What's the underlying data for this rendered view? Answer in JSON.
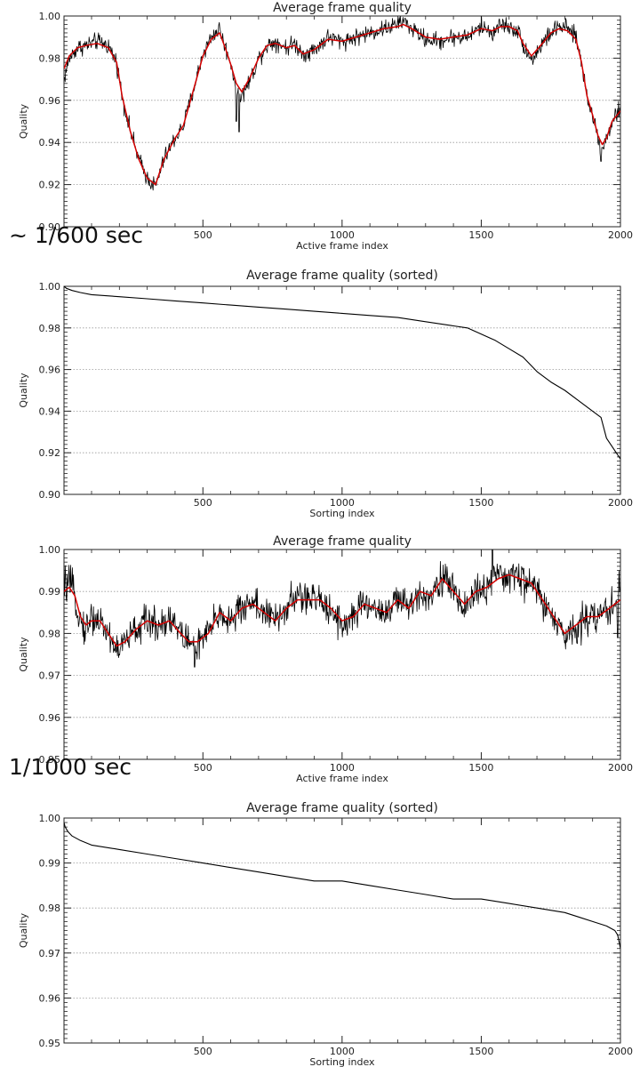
{
  "notes": [
    {
      "id": "note-1",
      "text": "~ 1/600 sec"
    },
    {
      "id": "note-2",
      "text": "1/1000 sec"
    }
  ],
  "colors": {
    "axis": "#222222",
    "grid": "#9a9a9a",
    "raw_line": "#000000",
    "smooth_line": "#d40000"
  },
  "chart_data": [
    {
      "id": "chart-1",
      "type": "line",
      "title": "Average frame quality",
      "xlabel": "Active frame index",
      "ylabel": "Quality",
      "xlim": [
        1,
        2000
      ],
      "ylim": [
        0.9,
        1.0
      ],
      "xticks": [
        500,
        1000,
        1500,
        2000
      ],
      "yticks": [
        0.9,
        0.92,
        0.94,
        0.96,
        0.98,
        1.0
      ],
      "ytick_labels": [
        "0.90",
        "0.92",
        "0.94",
        "0.96",
        "0.98",
        "1.00"
      ],
      "grid": "horizontal dotted",
      "noise": 0.0035,
      "spikes": [
        [
          630,
          0.945
        ],
        [
          620,
          0.95
        ],
        [
          1930,
          0.931
        ]
      ],
      "series": [
        {
          "role": "raw",
          "color": "#000000",
          "x": [
            1,
            20,
            50,
            80,
            120,
            160,
            190,
            210,
            240,
            270,
            300,
            330,
            360,
            400,
            430,
            460,
            500,
            530,
            560,
            580,
            600,
            620,
            640,
            670,
            700,
            730,
            760,
            800,
            830,
            860,
            900,
            950,
            1000,
            1050,
            1100,
            1150,
            1200,
            1220,
            1250,
            1300,
            1350,
            1400,
            1450,
            1500,
            1540,
            1570,
            1600,
            1630,
            1650,
            1680,
            1720,
            1750,
            1780,
            1810,
            1840,
            1860,
            1880,
            1900,
            1920,
            1935,
            1950,
            1970,
            2000
          ],
          "y": [
            0.97,
            0.98,
            0.985,
            0.986,
            0.988,
            0.986,
            0.978,
            0.962,
            0.945,
            0.932,
            0.923,
            0.919,
            0.932,
            0.942,
            0.948,
            0.962,
            0.982,
            0.99,
            0.994,
            0.985,
            0.978,
            0.966,
            0.962,
            0.97,
            0.98,
            0.986,
            0.988,
            0.985,
            0.987,
            0.982,
            0.984,
            0.99,
            0.988,
            0.99,
            0.992,
            0.994,
            0.996,
            0.998,
            0.994,
            0.989,
            0.988,
            0.99,
            0.99,
            0.995,
            0.992,
            0.996,
            0.995,
            0.993,
            0.987,
            0.979,
            0.987,
            0.992,
            0.995,
            0.994,
            0.99,
            0.978,
            0.962,
            0.953,
            0.942,
            0.937,
            0.942,
            0.95,
            0.956
          ]
        },
        {
          "role": "smoothed",
          "color": "#d40000",
          "x": [
            1,
            20,
            50,
            80,
            120,
            160,
            190,
            210,
            240,
            270,
            300,
            330,
            360,
            400,
            430,
            460,
            500,
            530,
            560,
            580,
            600,
            620,
            640,
            670,
            700,
            730,
            760,
            800,
            830,
            860,
            900,
            950,
            1000,
            1050,
            1100,
            1150,
            1200,
            1220,
            1250,
            1300,
            1350,
            1400,
            1450,
            1500,
            1540,
            1570,
            1600,
            1630,
            1650,
            1680,
            1720,
            1750,
            1780,
            1810,
            1840,
            1860,
            1880,
            1900,
            1920,
            1935,
            1950,
            1970,
            2000
          ],
          "y": [
            0.975,
            0.981,
            0.985,
            0.986,
            0.987,
            0.985,
            0.978,
            0.962,
            0.945,
            0.932,
            0.923,
            0.92,
            0.932,
            0.942,
            0.948,
            0.962,
            0.981,
            0.989,
            0.992,
            0.985,
            0.977,
            0.968,
            0.964,
            0.971,
            0.98,
            0.986,
            0.987,
            0.985,
            0.986,
            0.982,
            0.984,
            0.989,
            0.988,
            0.99,
            0.992,
            0.994,
            0.995,
            0.996,
            0.994,
            0.99,
            0.989,
            0.99,
            0.991,
            0.994,
            0.993,
            0.995,
            0.995,
            0.993,
            0.987,
            0.981,
            0.987,
            0.992,
            0.994,
            0.993,
            0.989,
            0.978,
            0.962,
            0.953,
            0.943,
            0.939,
            0.942,
            0.95,
            0.955
          ]
        }
      ]
    },
    {
      "id": "chart-2",
      "type": "line",
      "title": "Average frame quality (sorted)",
      "xlabel": "Sorting index",
      "ylabel": "Quality",
      "xlim": [
        1,
        2000
      ],
      "ylim": [
        0.9,
        1.0
      ],
      "xticks": [
        500,
        1000,
        1500,
        2000
      ],
      "yticks": [
        0.9,
        0.92,
        0.94,
        0.96,
        0.98,
        1.0
      ],
      "ytick_labels": [
        "0.90",
        "0.92",
        "0.94",
        "0.96",
        "0.98",
        "1.00"
      ],
      "grid": "horizontal dotted",
      "noise": 0,
      "spikes": [],
      "series": [
        {
          "role": "sorted",
          "color": "#000000",
          "x": [
            1,
            10,
            30,
            60,
            100,
            200,
            300,
            400,
            500,
            600,
            700,
            800,
            900,
            1000,
            1100,
            1200,
            1300,
            1400,
            1450,
            1500,
            1550,
            1600,
            1650,
            1700,
            1720,
            1750,
            1800,
            1850,
            1900,
            1930,
            1950,
            1970,
            2000
          ],
          "y": [
            1.0,
            0.999,
            0.998,
            0.997,
            0.996,
            0.995,
            0.994,
            0.993,
            0.992,
            0.991,
            0.99,
            0.989,
            0.988,
            0.987,
            0.986,
            0.985,
            0.983,
            0.981,
            0.98,
            0.977,
            0.974,
            0.97,
            0.966,
            0.959,
            0.957,
            0.954,
            0.95,
            0.945,
            0.94,
            0.937,
            0.927,
            0.923,
            0.917
          ]
        }
      ]
    },
    {
      "id": "chart-3",
      "type": "line",
      "title": "Average frame quality",
      "xlabel": "Active frame index",
      "ylabel": "Quality",
      "xlim": [
        1,
        2000
      ],
      "ylim": [
        0.95,
        1.0
      ],
      "xticks": [
        500,
        1000,
        1500,
        2000
      ],
      "yticks": [
        0.95,
        0.96,
        0.97,
        0.98,
        0.99,
        1.0
      ],
      "ytick_labels": [
        "0.95",
        "0.96",
        "0.97",
        "0.98",
        "0.99",
        "1.00"
      ],
      "grid": "horizontal dotted",
      "noise": 0.0035,
      "spikes": [
        [
          470,
          0.972
        ],
        [
          1540,
          1.0
        ],
        [
          1990,
          0.979
        ],
        [
          1995,
          0.995
        ]
      ],
      "series": [
        {
          "role": "raw",
          "color": "#000000",
          "x": [
            1,
            20,
            40,
            60,
            80,
            100,
            130,
            160,
            190,
            220,
            260,
            300,
            340,
            380,
            420,
            450,
            480,
            520,
            560,
            600,
            640,
            680,
            720,
            760,
            800,
            840,
            880,
            920,
            960,
            1000,
            1040,
            1080,
            1120,
            1160,
            1200,
            1240,
            1280,
            1320,
            1360,
            1400,
            1440,
            1480,
            1520,
            1560,
            1600,
            1640,
            1680,
            1720,
            1760,
            1800,
            1840,
            1880,
            1920,
            1960,
            2000
          ],
          "y": [
            0.991,
            0.992,
            0.989,
            0.983,
            0.981,
            0.984,
            0.983,
            0.98,
            0.976,
            0.978,
            0.981,
            0.983,
            0.982,
            0.984,
            0.98,
            0.978,
            0.977,
            0.98,
            0.985,
            0.983,
            0.986,
            0.988,
            0.985,
            0.983,
            0.986,
            0.989,
            0.988,
            0.988,
            0.986,
            0.982,
            0.984,
            0.987,
            0.986,
            0.985,
            0.988,
            0.986,
            0.99,
            0.989,
            0.994,
            0.99,
            0.986,
            0.99,
            0.991,
            0.993,
            0.994,
            0.993,
            0.992,
            0.988,
            0.983,
            0.979,
            0.982,
            0.984,
            0.984,
            0.986,
            0.989
          ]
        },
        {
          "role": "smoothed",
          "color": "#d40000",
          "x": [
            1,
            20,
            40,
            60,
            80,
            100,
            130,
            160,
            190,
            220,
            260,
            300,
            340,
            380,
            420,
            450,
            480,
            520,
            560,
            600,
            640,
            680,
            720,
            760,
            800,
            840,
            880,
            920,
            960,
            1000,
            1040,
            1080,
            1120,
            1160,
            1200,
            1240,
            1280,
            1320,
            1360,
            1400,
            1440,
            1480,
            1520,
            1560,
            1600,
            1640,
            1680,
            1720,
            1760,
            1800,
            1840,
            1880,
            1920,
            1960,
            2000
          ],
          "y": [
            0.99,
            0.991,
            0.989,
            0.984,
            0.982,
            0.983,
            0.983,
            0.98,
            0.977,
            0.978,
            0.981,
            0.983,
            0.982,
            0.983,
            0.98,
            0.978,
            0.978,
            0.98,
            0.985,
            0.983,
            0.986,
            0.987,
            0.985,
            0.983,
            0.986,
            0.988,
            0.988,
            0.988,
            0.986,
            0.983,
            0.984,
            0.987,
            0.986,
            0.985,
            0.988,
            0.986,
            0.99,
            0.989,
            0.993,
            0.99,
            0.987,
            0.99,
            0.991,
            0.993,
            0.994,
            0.993,
            0.992,
            0.988,
            0.984,
            0.98,
            0.982,
            0.984,
            0.984,
            0.986,
            0.988
          ]
        }
      ]
    },
    {
      "id": "chart-4",
      "type": "line",
      "title": "Average frame quality (sorted)",
      "xlabel": "Sorting index",
      "ylabel": "Quality",
      "xlim": [
        1,
        2000
      ],
      "ylim": [
        0.95,
        1.0
      ],
      "xticks": [
        500,
        1000,
        1500,
        2000
      ],
      "yticks": [
        0.95,
        0.96,
        0.97,
        0.98,
        0.99,
        1.0
      ],
      "ytick_labels": [
        "0.95",
        "0.96",
        "0.97",
        "0.98",
        "0.99",
        "1.00"
      ],
      "grid": "horizontal dotted",
      "noise": 0,
      "spikes": [],
      "series": [
        {
          "role": "sorted",
          "color": "#000000",
          "x": [
            1,
            5,
            15,
            30,
            60,
            100,
            200,
            300,
            400,
            500,
            600,
            700,
            800,
            900,
            1000,
            1100,
            1200,
            1300,
            1400,
            1500,
            1600,
            1700,
            1800,
            1850,
            1900,
            1950,
            1980,
            1990,
            2000
          ],
          "y": [
            0.999,
            0.998,
            0.997,
            0.996,
            0.995,
            0.994,
            0.993,
            0.992,
            0.991,
            0.99,
            0.989,
            0.988,
            0.987,
            0.986,
            0.986,
            0.985,
            0.984,
            0.983,
            0.982,
            0.982,
            0.981,
            0.98,
            0.979,
            0.978,
            0.977,
            0.976,
            0.975,
            0.974,
            0.971
          ]
        }
      ]
    }
  ]
}
